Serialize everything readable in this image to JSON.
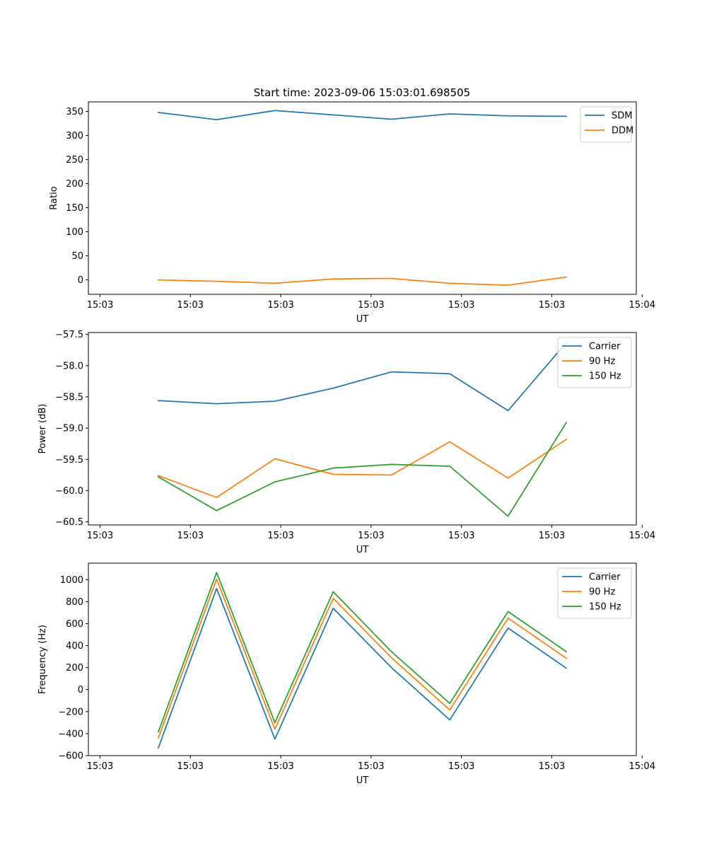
{
  "figure": {
    "title": "Start time: 2023-09-06 15:03:01.698505"
  },
  "colors": {
    "blue": "#1f77b4",
    "orange": "#ff7f0e",
    "green": "#2ca02c"
  },
  "chart_data": [
    {
      "type": "line",
      "title": "Start time: 2023-09-06 15:03:01.698505",
      "xlabel": "UT",
      "ylabel": "Ratio",
      "x": [
        1,
        2,
        3,
        4,
        5,
        6,
        7,
        8
      ],
      "xlim": [
        -0.2,
        9.2
      ],
      "ylim": [
        -30,
        370
      ],
      "xticks": [
        {
          "value": 0,
          "label": "15:03"
        },
        {
          "value": 1.55,
          "label": "15:03"
        },
        {
          "value": 3.1,
          "label": "15:03"
        },
        {
          "value": 4.65,
          "label": "15:03"
        },
        {
          "value": 6.2,
          "label": "15:03"
        },
        {
          "value": 7.75,
          "label": "15:03"
        },
        {
          "value": 9.3,
          "label": "15:04"
        }
      ],
      "yticks": [
        0,
        50,
        100,
        150,
        200,
        250,
        300,
        350
      ],
      "legend_position": "upper right",
      "series": [
        {
          "name": "SDM",
          "color": "#1f77b4",
          "values": [
            348,
            333,
            352,
            343,
            334,
            345,
            341,
            340
          ]
        },
        {
          "name": "DDM",
          "color": "#ff7f0e",
          "values": [
            0,
            -3,
            -7,
            2,
            3,
            -7,
            -11,
            6
          ]
        }
      ]
    },
    {
      "type": "line",
      "xlabel": "UT",
      "ylabel": "Power (dB)",
      "x": [
        1,
        2,
        3,
        4,
        5,
        6,
        7,
        8
      ],
      "xlim": [
        -0.2,
        9.2
      ],
      "ylim": [
        -60.55,
        -57.47
      ],
      "xticks": [
        {
          "value": 0,
          "label": "15:03"
        },
        {
          "value": 1.55,
          "label": "15:03"
        },
        {
          "value": 3.1,
          "label": "15:03"
        },
        {
          "value": 4.65,
          "label": "15:03"
        },
        {
          "value": 6.2,
          "label": "15:03"
        },
        {
          "value": 7.75,
          "label": "15:03"
        },
        {
          "value": 9.3,
          "label": "15:04"
        }
      ],
      "yticks": [
        -60.5,
        -60.0,
        -59.5,
        -59.0,
        -58.5,
        -58.0,
        -57.5
      ],
      "legend_position": "upper right",
      "series": [
        {
          "name": "Carrier",
          "color": "#1f77b4",
          "values": [
            -58.56,
            -58.61,
            -58.57,
            -58.36,
            -58.1,
            -58.13,
            -58.72,
            -57.63
          ]
        },
        {
          "name": "90 Hz",
          "color": "#ff7f0e",
          "values": [
            -59.76,
            -60.11,
            -59.49,
            -59.74,
            -59.75,
            -59.22,
            -59.8,
            -59.18
          ]
        },
        {
          "name": "150 Hz",
          "color": "#2ca02c",
          "values": [
            -59.78,
            -60.32,
            -59.86,
            -59.64,
            -59.58,
            -59.61,
            -60.41,
            -58.91
          ]
        }
      ]
    },
    {
      "type": "line",
      "xlabel": "UT",
      "ylabel": "Frequency (Hz)",
      "x": [
        1,
        2,
        3,
        4,
        5,
        6,
        7,
        8
      ],
      "xlim": [
        -0.2,
        9.2
      ],
      "ylim": [
        -600,
        1150
      ],
      "xticks": [
        {
          "value": 0,
          "label": "15:03"
        },
        {
          "value": 1.55,
          "label": "15:03"
        },
        {
          "value": 3.1,
          "label": "15:03"
        },
        {
          "value": 4.65,
          "label": "15:03"
        },
        {
          "value": 6.2,
          "label": "15:03"
        },
        {
          "value": 7.75,
          "label": "15:03"
        },
        {
          "value": 9.3,
          "label": "15:04"
        }
      ],
      "yticks": [
        -600,
        -400,
        -200,
        0,
        200,
        400,
        600,
        800,
        1000
      ],
      "legend_position": "upper right",
      "series": [
        {
          "name": "Carrier",
          "color": "#1f77b4",
          "values": [
            -530,
            920,
            -450,
            740,
            200,
            -275,
            560,
            195
          ]
        },
        {
          "name": "90 Hz",
          "color": "#ff7f0e",
          "values": [
            -440,
            1005,
            -360,
            830,
            290,
            -185,
            650,
            285
          ]
        },
        {
          "name": "150 Hz",
          "color": "#2ca02c",
          "values": [
            -385,
            1065,
            -300,
            890,
            345,
            -125,
            710,
            345
          ]
        }
      ]
    }
  ]
}
